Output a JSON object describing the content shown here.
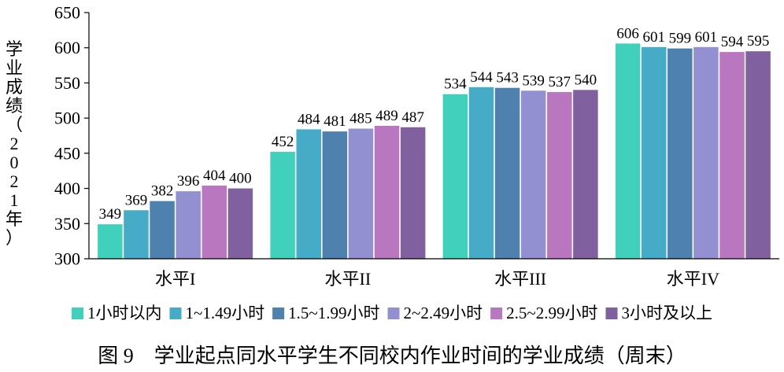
{
  "chart_data": {
    "type": "bar",
    "title": "",
    "caption": "图 9　学业起点同水平学生不同校内作业时间的学业成绩（周末）",
    "xlabel": "",
    "ylabel": "学业成绩（2021年）",
    "ylim": [
      300,
      650
    ],
    "yticks": [
      300,
      350,
      400,
      450,
      500,
      550,
      600,
      650
    ],
    "grid": false,
    "legend_position": "bottom",
    "categories": [
      "水平I",
      "水平II",
      "水平III",
      "水平IV"
    ],
    "series": [
      {
        "name": "1小时以内",
        "color": "#40d0bc",
        "values": [
          349,
          452,
          534,
          606
        ]
      },
      {
        "name": "1~1.49小时",
        "color": "#46abc6",
        "values": [
          369,
          484,
          544,
          601
        ]
      },
      {
        "name": "1.5~1.99小时",
        "color": "#4e81ad",
        "values": [
          382,
          481,
          543,
          599
        ]
      },
      {
        "name": "2~2.49小时",
        "color": "#9390d2",
        "values": [
          396,
          485,
          539,
          601
        ]
      },
      {
        "name": "2.5~2.99小时",
        "color": "#b877bf",
        "values": [
          404,
          489,
          537,
          594
        ]
      },
      {
        "name": "3小时及以上",
        "color": "#81609f",
        "values": [
          400,
          487,
          540,
          595
        ]
      }
    ]
  }
}
